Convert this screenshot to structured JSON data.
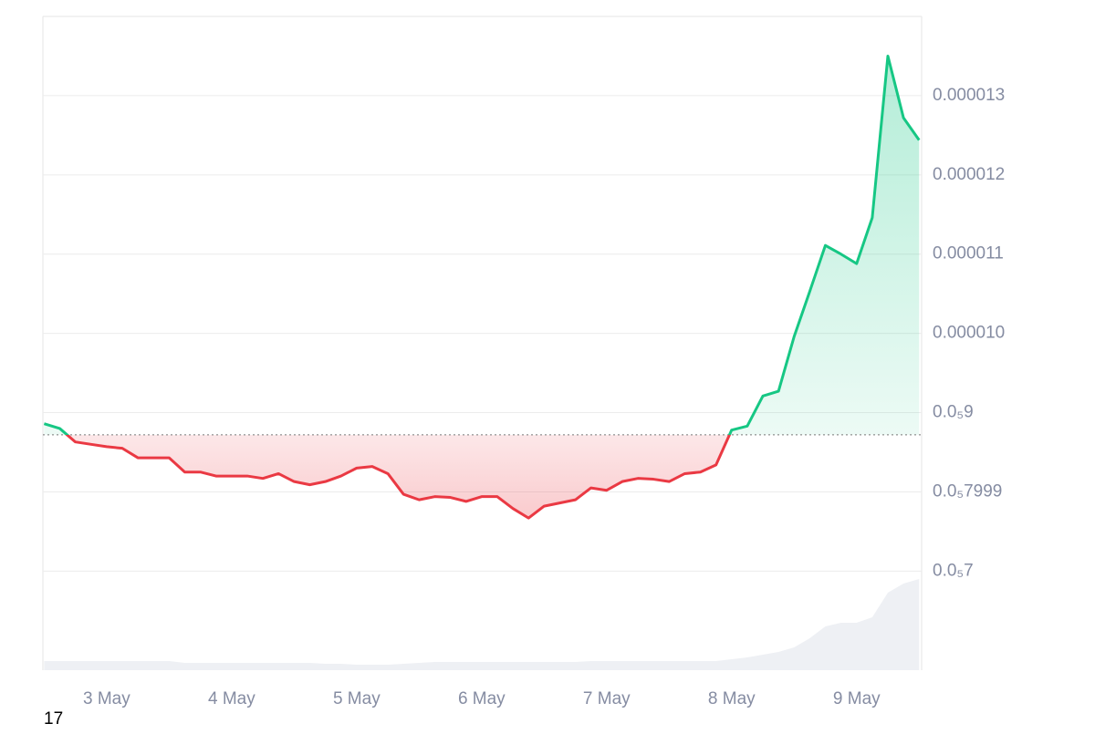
{
  "chart_data": {
    "type": "line",
    "x": [
      2.5,
      2.625,
      2.75,
      2.875,
      3.0,
      3.125,
      3.25,
      3.375,
      3.5,
      3.625,
      3.75,
      3.875,
      4.0,
      4.125,
      4.25,
      4.375,
      4.5,
      4.625,
      4.75,
      4.875,
      5.0,
      5.125,
      5.25,
      5.375,
      5.5,
      5.625,
      5.75,
      5.875,
      6.0,
      6.125,
      6.25,
      6.375,
      6.5,
      6.625,
      6.75,
      6.875,
      7.0,
      7.125,
      7.25,
      7.375,
      7.5,
      7.625,
      7.75,
      7.875,
      8.0,
      8.125,
      8.25,
      8.375,
      8.5,
      8.625,
      8.75,
      8.875,
      9.0,
      9.125,
      9.25,
      9.375,
      9.5
    ],
    "values": [
      8.86e-06,
      8.8e-06,
      8.63e-06,
      8.6e-06,
      8.57e-06,
      8.55e-06,
      8.43e-06,
      8.43e-06,
      8.43e-06,
      8.25e-06,
      8.25e-06,
      8.2e-06,
      8.2e-06,
      8.2e-06,
      8.17e-06,
      8.23e-06,
      8.13e-06,
      8.09e-06,
      8.13e-06,
      8.2e-06,
      8.3e-06,
      8.32e-06,
      8.23e-06,
      7.97e-06,
      7.9e-06,
      7.94e-06,
      7.93e-06,
      7.88e-06,
      7.94e-06,
      7.94e-06,
      7.79e-06,
      7.67e-06,
      7.82e-06,
      7.86e-06,
      7.9e-06,
      8.05e-06,
      8.02e-06,
      8.13e-06,
      8.17e-06,
      8.16e-06,
      8.13e-06,
      8.23e-06,
      8.25e-06,
      8.34e-06,
      8.78e-06,
      8.83e-06,
      9.21e-06,
      9.27e-06,
      9.96e-06,
      1.053e-05,
      1.111e-05,
      1.1e-05,
      1.088e-05,
      1.146e-05,
      1.35e-05,
      1.272e-05,
      1.244e-05
    ],
    "baseline": 8.72e-06,
    "up_color": "#16c784",
    "down_color": "#ea3943",
    "volume": [
      10,
      10,
      10,
      10,
      10,
      10,
      10,
      10,
      10,
      8,
      8,
      8,
      8,
      8,
      8,
      8,
      8,
      8,
      7,
      7,
      6,
      6,
      6,
      7,
      8,
      9,
      9,
      9,
      9,
      9,
      9,
      9,
      9,
      9,
      9,
      10,
      10,
      10,
      10,
      10,
      10,
      10,
      10,
      10,
      12,
      14,
      17,
      20,
      25,
      35,
      48,
      52,
      52,
      58,
      85,
      95,
      100
    ],
    "xlim": [
      2.49,
      9.52
    ],
    "xticks": [
      {
        "value": 3,
        "label": "3 May"
      },
      {
        "value": 4,
        "label": "4 May"
      },
      {
        "value": 5,
        "label": "5 May"
      },
      {
        "value": 6,
        "label": "6 May"
      },
      {
        "value": 7,
        "label": "7 May"
      },
      {
        "value": 8,
        "label": "8 May"
      },
      {
        "value": 9,
        "label": "9 May"
      }
    ],
    "ylim": [
      5.75e-06,
      1.4e-05
    ],
    "yticks": [
      1.3e-05,
      1.2e-05,
      1.1e-05,
      {
        "value": 1e-05,
        "label": "0.000010"
      },
      {
        "value": 9e-06,
        "label": "0.0₅9"
      },
      {
        "value": 7.999e-06,
        "label": "0.0₅7999"
      },
      {
        "value": 7e-06,
        "label": "0.0₅7"
      }
    ],
    "grid": true,
    "watermark": "17"
  }
}
